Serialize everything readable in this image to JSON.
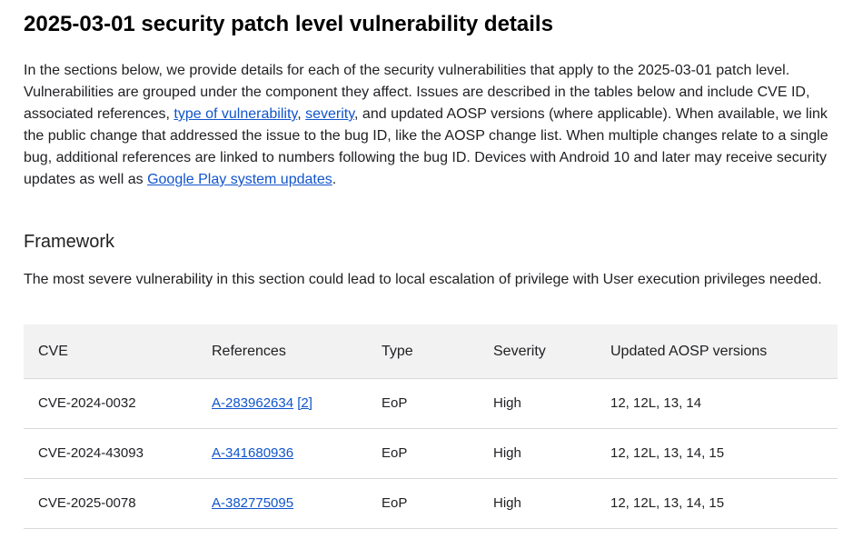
{
  "header": {
    "title": "2025-03-01 security patch level vulnerability details"
  },
  "intro": {
    "part1": "In the sections below, we provide details for each of the security vulnerabilities that apply to the 2025-03-01 patch level. Vulnerabilities are grouped under the component they affect. Issues are described in the tables below and include CVE ID, associated references, ",
    "link_type": "type of vulnerability",
    "sep1": ", ",
    "link_severity": "severity",
    "part2": ", and updated AOSP versions (where applicable). When available, we link the public change that addressed the issue to the bug ID, like the AOSP change list. When multiple changes relate to a single bug, additional references are linked to numbers following the bug ID. Devices with Android 10 and later may receive security updates as well as ",
    "link_gplay": "Google Play system updates",
    "part3": "."
  },
  "framework": {
    "heading": "Framework",
    "description": "The most severe vulnerability in this section could lead to local escalation of privilege with User execution privileges needed."
  },
  "table": {
    "headers": [
      "CVE",
      "References",
      "Type",
      "Severity",
      "Updated AOSP versions"
    ],
    "rows": [
      {
        "cve": "CVE-2024-0032",
        "references": [
          "A-283962634",
          "[2]"
        ],
        "type": "EoP",
        "severity": "High",
        "versions": "12, 12L, 13, 14"
      },
      {
        "cve": "CVE-2024-43093",
        "references": [
          "A-341680936"
        ],
        "type": "EoP",
        "severity": "High",
        "versions": "12, 12L, 13, 14, 15"
      },
      {
        "cve": "CVE-2025-0078",
        "references": [
          "A-382775095"
        ],
        "type": "EoP",
        "severity": "High",
        "versions": "12, 12L, 13, 14, 15"
      }
    ]
  },
  "colors": {
    "link": "#1155cc",
    "text": "#202124",
    "table_header_bg": "#f2f2f2",
    "border": "#d9d9d9"
  }
}
